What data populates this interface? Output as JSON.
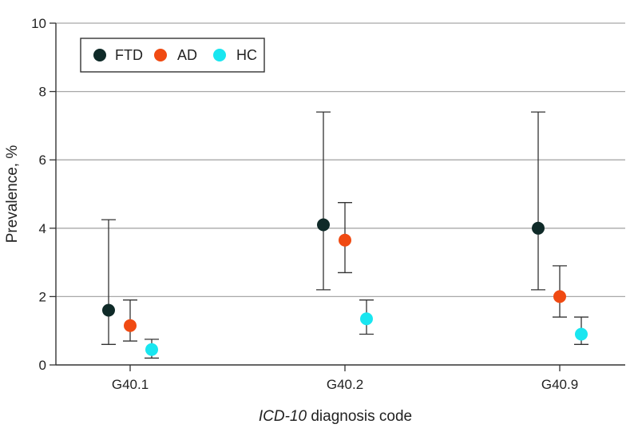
{
  "chart_data": {
    "type": "scatter",
    "title": "",
    "xlabel": {
      "italic": "ICD-10",
      "rest": " diagnosis code"
    },
    "ylabel": "Prevalence, %",
    "ylim": [
      0,
      10
    ],
    "yticks": [
      0,
      2,
      4,
      6,
      8,
      10
    ],
    "categories": [
      "G40.1",
      "G40.2",
      "G40.9"
    ],
    "grid": true,
    "legend_position": "top-left",
    "series": [
      {
        "name": "FTD",
        "color": "#0f2a28",
        "values": [
          1.6,
          4.1,
          4.0
        ],
        "lower": [
          0.6,
          2.2,
          2.2
        ],
        "upper": [
          4.25,
          7.4,
          7.4
        ]
      },
      {
        "name": "AD",
        "color": "#f04a12",
        "values": [
          1.15,
          3.65,
          2.0
        ],
        "lower": [
          0.7,
          2.7,
          1.4
        ],
        "upper": [
          1.9,
          4.75,
          2.9
        ]
      },
      {
        "name": "HC",
        "color": "#19e6f0",
        "values": [
          0.45,
          1.35,
          0.9
        ],
        "lower": [
          0.2,
          0.9,
          0.6
        ],
        "upper": [
          0.75,
          1.9,
          1.4
        ]
      }
    ]
  }
}
